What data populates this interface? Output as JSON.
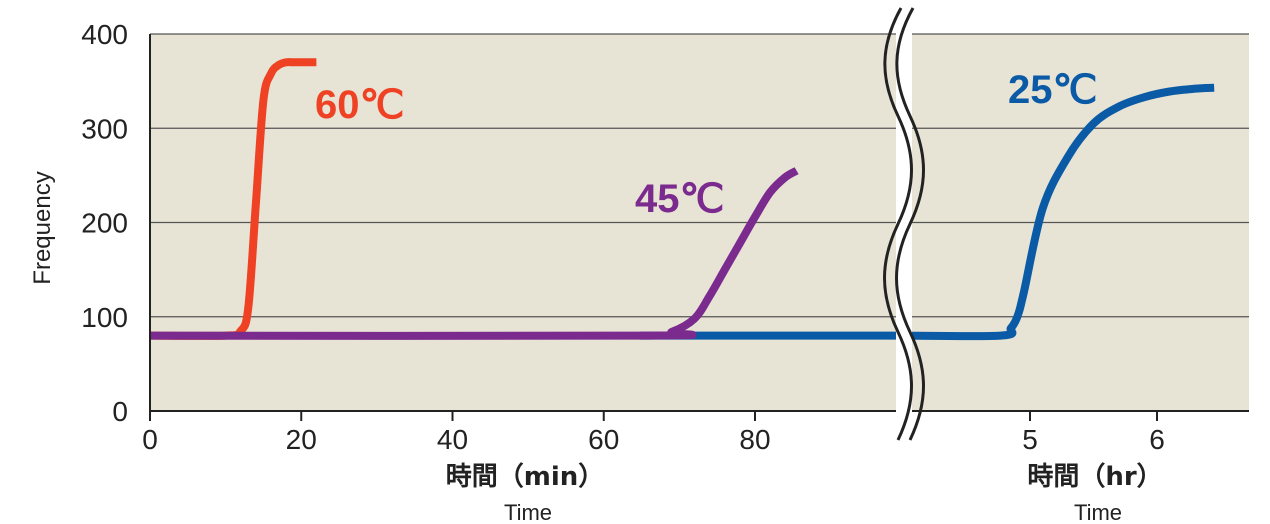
{
  "chart_data": {
    "type": "line",
    "ylabel": "Frequency",
    "ylim": [
      0,
      400
    ],
    "yticks": [
      "0",
      "100",
      "200",
      "300",
      "400"
    ],
    "grid": true,
    "axis_break": true,
    "x_axes": [
      {
        "ticks": [
          "0",
          "20",
          "40",
          "60",
          "80"
        ],
        "label": "時間（min）",
        "sublabel": "Time"
      },
      {
        "ticks": [
          "5",
          "6"
        ],
        "label": "時間（hr）",
        "sublabel": "Time"
      }
    ],
    "series": [
      {
        "name": "60℃",
        "color": "#ef4123",
        "x_unit": "min",
        "x": [
          0,
          10,
          12,
          13,
          14,
          15,
          16,
          17,
          18,
          19,
          22
        ],
        "y": [
          80,
          80,
          85,
          110,
          220,
          330,
          358,
          367,
          370,
          370,
          370
        ]
      },
      {
        "name": "45℃",
        "color": "#7b2a8e",
        "x_unit": "min",
        "x": [
          0,
          66,
          69,
          72,
          74,
          76,
          78,
          80,
          82,
          84,
          85.5
        ],
        "y": [
          80,
          80,
          84,
          98,
          122,
          150,
          178,
          206,
          232,
          248,
          255
        ]
      },
      {
        "name": "25℃",
        "color": "#0a5aa6",
        "x_unit": "hr",
        "x": [
          3.9,
          4.77,
          4.85,
          4.9,
          4.95,
          5.1,
          5.3,
          5.5,
          5.7,
          5.9,
          6.1,
          6.3,
          6.45
        ],
        "y": [
          80,
          80,
          88,
          100,
          125,
          215,
          270,
          305,
          323,
          333,
          339,
          342,
          343
        ]
      }
    ]
  }
}
